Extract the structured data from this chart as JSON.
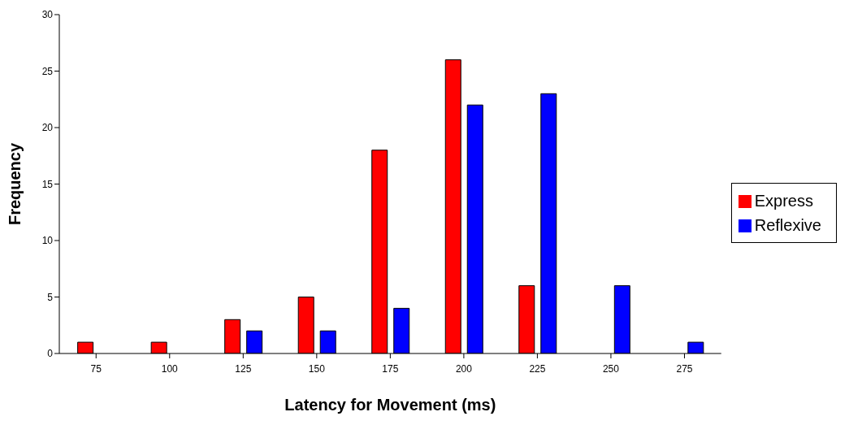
{
  "chart_data": {
    "type": "bar",
    "xlabel": "Latency for Movement (ms)",
    "ylabel": "Frequency",
    "categories": [
      "75",
      "100",
      "125",
      "150",
      "175",
      "200",
      "225",
      "250",
      "275"
    ],
    "series": [
      {
        "name": "Express",
        "color": "#ff0000",
        "values": [
          1,
          1,
          3,
          5,
          18,
          26,
          6,
          0,
          0
        ]
      },
      {
        "name": "Reflexive",
        "color": "#0000ff",
        "values": [
          0,
          0,
          2,
          2,
          4,
          22,
          23,
          6,
          1
        ]
      }
    ],
    "ylim": [
      0,
      30
    ],
    "yticks": [
      0,
      5,
      10,
      15,
      20,
      25,
      30
    ],
    "grid": false,
    "legend": "right"
  }
}
